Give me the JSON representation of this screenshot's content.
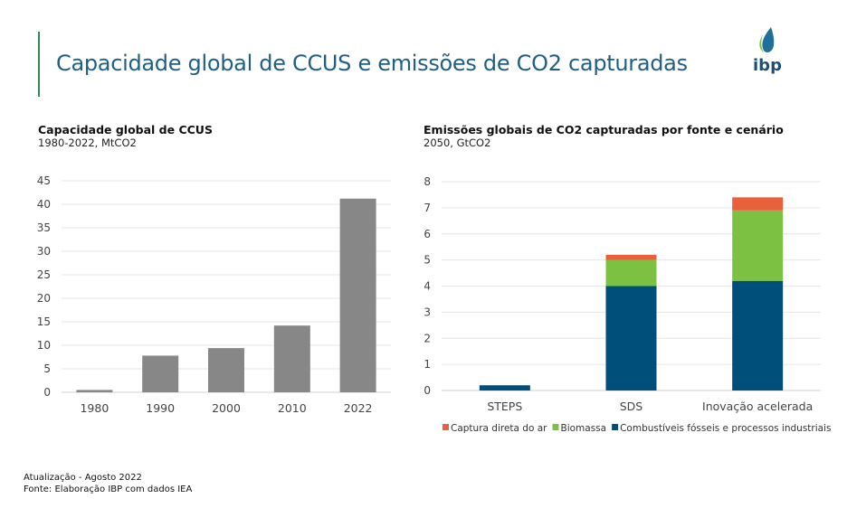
{
  "header": {
    "title": "Capacidade global de CCUS e emissões de CO2 capturadas",
    "logo_text": "ibp"
  },
  "footer": {
    "update": "Atualização - Agosto 2022",
    "source": "Fonte: Elaboração IBP com dados IEA"
  },
  "chart_data": [
    {
      "type": "bar",
      "title": "Capacidade global de CCUS",
      "subtitle": "1980-2022, MtCO2",
      "categories": [
        "1980",
        "1990",
        "2000",
        "2010",
        "2022"
      ],
      "values": [
        0.5,
        7.8,
        9.4,
        14.2,
        41.2
      ],
      "ylim": [
        0,
        45
      ],
      "yticks": [
        0,
        5,
        10,
        15,
        20,
        25,
        30,
        35,
        40,
        45
      ],
      "grid": true,
      "color": "#878787"
    },
    {
      "type": "bar",
      "stacked": true,
      "title": "Emissões globais de CO2 capturadas por fonte e cenário",
      "subtitle": "2050, GtCO2",
      "categories": [
        "STEPS",
        "SDS",
        "Inovação acelerada"
      ],
      "series": [
        {
          "name": "Combustíveis fósseis e processos industriais",
          "values": [
            0.2,
            4.0,
            4.2
          ],
          "color": "#004f7a"
        },
        {
          "name": "Biomassa",
          "values": [
            0,
            1.0,
            2.7
          ],
          "color": "#7dc142"
        },
        {
          "name": "Captura direta do ar",
          "values": [
            0,
            0.2,
            0.5
          ],
          "color": "#e8603c"
        }
      ],
      "legend_order": [
        2,
        1,
        0
      ],
      "ylim": [
        0,
        8
      ],
      "yticks": [
        0,
        1,
        2,
        3,
        4,
        5,
        6,
        7,
        8
      ],
      "grid": true,
      "legend": "bottom"
    }
  ]
}
